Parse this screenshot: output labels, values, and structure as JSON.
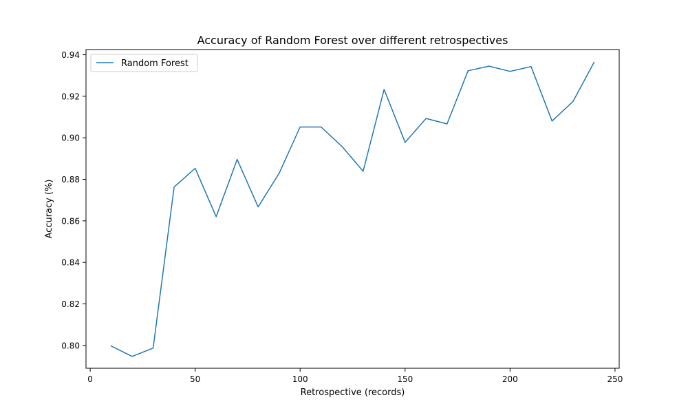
{
  "chart_data": {
    "type": "line",
    "title": "Accuracy of Random Forest over different retrospectives",
    "xlabel": "Retrospective (records)",
    "ylabel": "Accuracy (%)",
    "xlim": [
      -2,
      252
    ],
    "ylim": [
      0.789,
      0.9425
    ],
    "xticks": [
      0,
      50,
      100,
      150,
      200,
      250
    ],
    "xtick_labels": [
      "0",
      "50",
      "100",
      "150",
      "200",
      "250"
    ],
    "yticks": [
      0.8,
      0.82,
      0.84,
      0.86,
      0.88,
      0.9,
      0.92,
      0.94
    ],
    "ytick_labels": [
      "0.80",
      "0.82",
      "0.84",
      "0.86",
      "0.88",
      "0.90",
      "0.92",
      "0.94"
    ],
    "grid": false,
    "legend_position": "top-left",
    "series": [
      {
        "name": "Random Forest",
        "color": "#1f77b4",
        "x": [
          10,
          20,
          30,
          40,
          50,
          60,
          70,
          80,
          90,
          100,
          110,
          120,
          130,
          140,
          150,
          160,
          170,
          180,
          190,
          200,
          210,
          220,
          230,
          240
        ],
        "y": [
          0.7997,
          0.7947,
          0.7987,
          0.8763,
          0.8853,
          0.862,
          0.8896,
          0.8667,
          0.8829,
          0.9052,
          0.9052,
          0.8958,
          0.8839,
          0.9233,
          0.8978,
          0.9093,
          0.9067,
          0.9323,
          0.9345,
          0.932,
          0.9343,
          0.9081,
          0.9175,
          0.9363
        ]
      }
    ]
  }
}
